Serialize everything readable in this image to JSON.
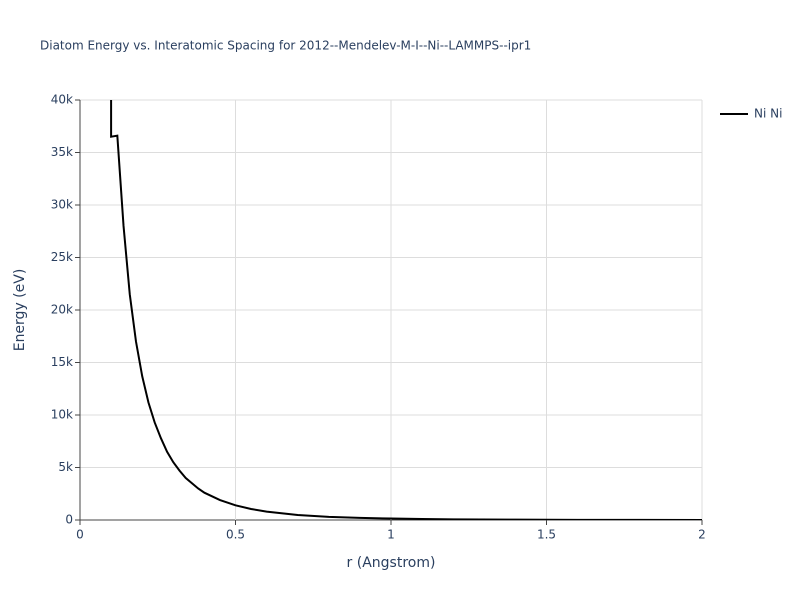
{
  "chart_data": {
    "type": "line",
    "title": "Diatom Energy vs. Interatomic Spacing for 2012--Mendelev-M-I--Ni--LAMMPS--ipr1",
    "x_label": "r (Angstrom)",
    "y_label": "Energy (eV)",
    "x": [
      0.1,
      0.1,
      0.12,
      0.14,
      0.16,
      0.18,
      0.2,
      0.22,
      0.24,
      0.26,
      0.28,
      0.3,
      0.32,
      0.34,
      0.36,
      0.38,
      0.4,
      0.45,
      0.5,
      0.55,
      0.6,
      0.7,
      0.8,
      0.9,
      1.0,
      1.1,
      1.2,
      1.4,
      1.6,
      1.8,
      2.0
    ],
    "series": [
      {
        "name": "Ni Ni",
        "color": "#000000",
        "values": [
          40000,
          36500,
          36600,
          28000,
          21500,
          17000,
          13700,
          11200,
          9300,
          7800,
          6500,
          5500,
          4700,
          4000,
          3500,
          3000,
          2600,
          1900,
          1400,
          1050,
          800,
          480,
          300,
          200,
          140,
          90,
          60,
          30,
          15,
          7,
          3
        ]
      }
    ],
    "xlim": [
      0,
      2
    ],
    "xticks": [
      0,
      0.5,
      1,
      1.5,
      2
    ],
    "ylim": [
      0,
      40000
    ],
    "yticks": [
      0,
      {
        "value": 5000,
        "label": "5k"
      },
      {
        "value": 10000,
        "label": "10k"
      },
      {
        "value": 15000,
        "label": "15k"
      },
      {
        "value": 20000,
        "label": "20k"
      },
      {
        "value": 25000,
        "label": "25k"
      },
      {
        "value": 30000,
        "label": "30k"
      },
      {
        "value": 35000,
        "label": "35k"
      },
      {
        "value": 40000,
        "label": "40k"
      }
    ],
    "grid": true,
    "legend": "top-right"
  }
}
